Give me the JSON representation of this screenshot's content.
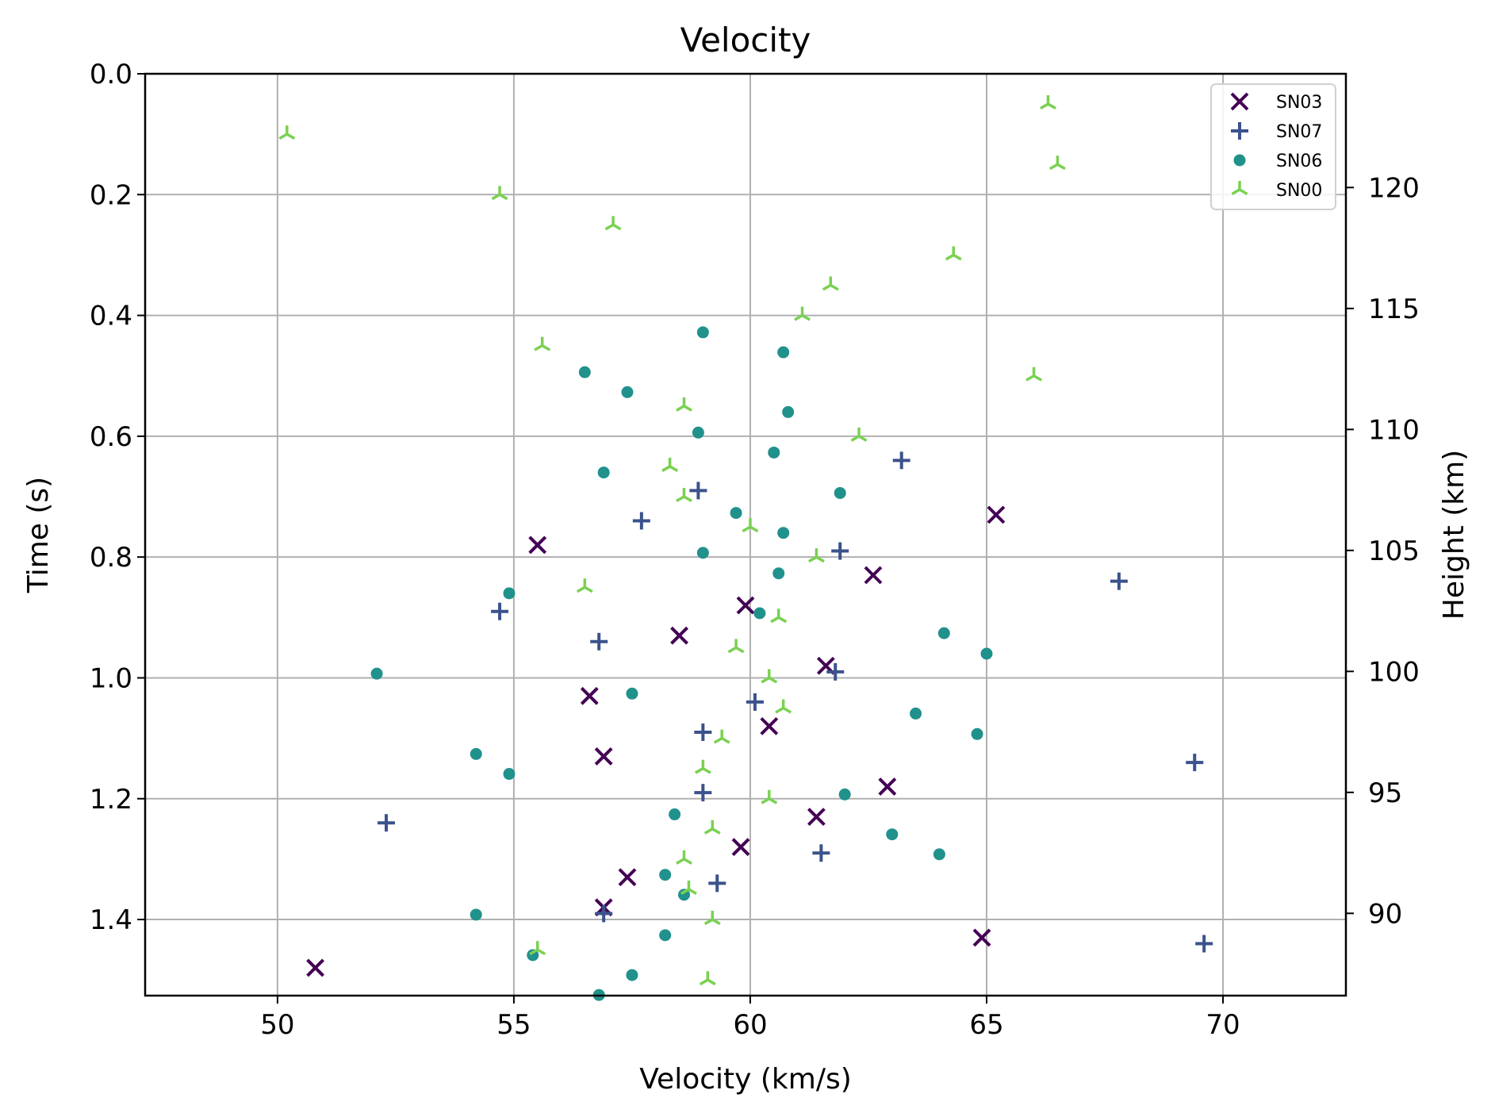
{
  "chart_data": {
    "type": "scatter",
    "title": "Velocity",
    "xlabel": "Velocity (km/s)",
    "ylabel": "Time (s)",
    "y2label": "Height (km)",
    "xlim": [
      47.2,
      72.6
    ],
    "ylim": [
      1.526,
      0.0
    ],
    "y2lim": [
      86.6,
      124.7
    ],
    "xticks": [
      "50",
      "55",
      "60",
      "65",
      "70"
    ],
    "yticks": [
      "0.0",
      "0.2",
      "0.4",
      "0.6",
      "0.8",
      "1.0",
      "1.2",
      "1.4"
    ],
    "y2ticks": [
      "90",
      "95",
      "100",
      "105",
      "110",
      "115",
      "120"
    ],
    "grid": true,
    "legend_position": "top-right",
    "series": [
      {
        "name": "SN03",
        "marker": "x",
        "color": "#440154",
        "points": [
          [
            65.2,
            0.73
          ],
          [
            55.5,
            0.78
          ],
          [
            62.6,
            0.83
          ],
          [
            59.9,
            0.88
          ],
          [
            58.5,
            0.93
          ],
          [
            61.6,
            0.98
          ],
          [
            56.6,
            1.03
          ],
          [
            60.4,
            1.08
          ],
          [
            56.9,
            1.13
          ],
          [
            62.9,
            1.18
          ],
          [
            61.4,
            1.23
          ],
          [
            59.8,
            1.28
          ],
          [
            57.4,
            1.33
          ],
          [
            56.9,
            1.38
          ],
          [
            64.9,
            1.43
          ],
          [
            50.8,
            1.48
          ]
        ]
      },
      {
        "name": "SN07",
        "marker": "+",
        "color": "#3b528b",
        "points": [
          [
            63.2,
            0.64
          ],
          [
            58.9,
            0.69
          ],
          [
            57.7,
            0.74
          ],
          [
            61.9,
            0.79
          ],
          [
            67.8,
            0.84
          ],
          [
            54.7,
            0.89
          ],
          [
            56.8,
            0.94
          ],
          [
            61.8,
            0.99
          ],
          [
            60.1,
            1.04
          ],
          [
            59.0,
            1.09
          ],
          [
            69.4,
            1.14
          ],
          [
            59.0,
            1.19
          ],
          [
            52.3,
            1.24
          ],
          [
            61.5,
            1.29
          ],
          [
            59.3,
            1.34
          ],
          [
            56.9,
            1.39
          ],
          [
            69.6,
            1.44
          ]
        ]
      },
      {
        "name": "SN06",
        "marker": "o",
        "color": "#21918c",
        "points": [
          [
            59.0,
            0.428
          ],
          [
            60.7,
            0.461
          ],
          [
            56.5,
            0.494
          ],
          [
            57.4,
            0.527
          ],
          [
            60.8,
            0.56
          ],
          [
            58.9,
            0.594
          ],
          [
            60.5,
            0.627
          ],
          [
            56.9,
            0.66
          ],
          [
            61.9,
            0.694
          ],
          [
            59.7,
            0.727
          ],
          [
            60.7,
            0.76
          ],
          [
            59.0,
            0.793
          ],
          [
            60.6,
            0.827
          ],
          [
            54.9,
            0.86
          ],
          [
            60.2,
            0.893
          ],
          [
            64.1,
            0.926
          ],
          [
            65.0,
            0.96
          ],
          [
            52.1,
            0.993
          ],
          [
            57.5,
            1.026
          ],
          [
            63.5,
            1.059
          ],
          [
            64.8,
            1.093
          ],
          [
            54.2,
            1.126
          ],
          [
            54.9,
            1.159
          ],
          [
            62.0,
            1.193
          ],
          [
            58.4,
            1.226
          ],
          [
            63.0,
            1.259
          ],
          [
            64.0,
            1.292
          ],
          [
            58.2,
            1.326
          ],
          [
            58.6,
            1.359
          ],
          [
            54.2,
            1.392
          ],
          [
            58.2,
            1.426
          ],
          [
            55.4,
            1.459
          ],
          [
            57.5,
            1.492
          ],
          [
            56.8,
            1.525
          ]
        ]
      },
      {
        "name": "SN00",
        "marker": "tri_down",
        "color": "#7ad151",
        "points": [
          [
            66.3,
            0.05
          ],
          [
            50.2,
            0.1
          ],
          [
            66.5,
            0.15
          ],
          [
            54.7,
            0.2
          ],
          [
            57.1,
            0.25
          ],
          [
            64.3,
            0.3
          ],
          [
            61.7,
            0.35
          ],
          [
            61.1,
            0.4
          ],
          [
            55.6,
            0.45
          ],
          [
            66.0,
            0.5
          ],
          [
            58.6,
            0.55
          ],
          [
            62.3,
            0.6
          ],
          [
            58.3,
            0.65
          ],
          [
            58.6,
            0.7
          ],
          [
            60.0,
            0.75
          ],
          [
            61.4,
            0.8
          ],
          [
            56.5,
            0.85
          ],
          [
            60.6,
            0.9
          ],
          [
            59.7,
            0.95
          ],
          [
            60.4,
            1.0
          ],
          [
            60.7,
            1.05
          ],
          [
            59.4,
            1.1
          ],
          [
            59.0,
            1.15
          ],
          [
            60.4,
            1.2
          ],
          [
            59.2,
            1.25
          ],
          [
            58.6,
            1.3
          ],
          [
            58.7,
            1.35
          ],
          [
            59.2,
            1.4
          ],
          [
            55.5,
            1.45
          ],
          [
            59.1,
            1.5
          ]
        ]
      }
    ]
  }
}
